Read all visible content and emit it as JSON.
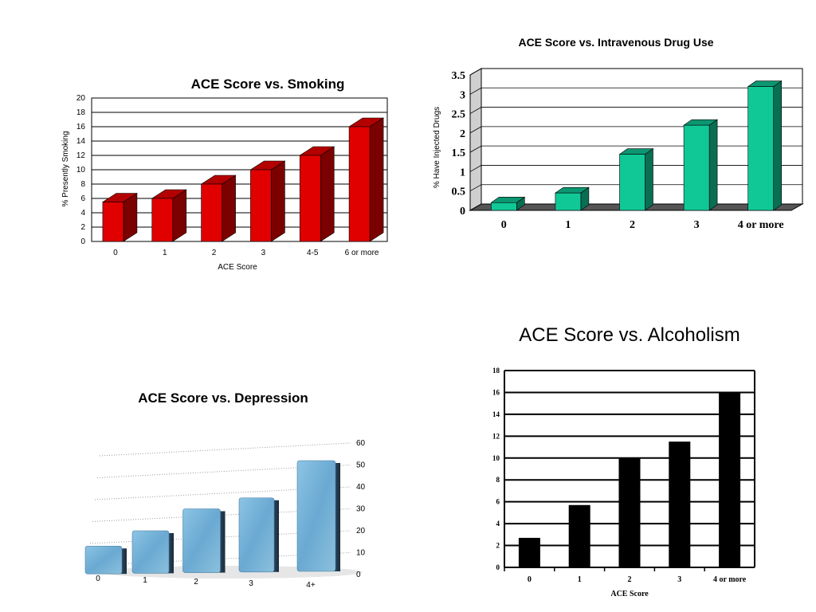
{
  "chart_data": [
    {
      "id": "smoking",
      "type": "bar",
      "title": "ACE Score vs. Smoking",
      "xlabel": "ACE Score",
      "ylabel": "% Presently Smoking",
      "categories": [
        "0",
        "1",
        "2",
        "3",
        "4-5",
        "6 or more"
      ],
      "values": [
        5.5,
        6,
        8,
        10,
        12,
        16
      ],
      "y_ticks": [
        "0",
        "2",
        "4",
        "6",
        "8",
        "10",
        "12",
        "14",
        "16",
        "18",
        "20"
      ],
      "ylim": [
        0,
        20
      ],
      "grid": true,
      "bar_color": "#e00000"
    },
    {
      "id": "drugs",
      "type": "bar",
      "title": "ACE Score vs. Intravenous Drug Use",
      "xlabel": "",
      "ylabel": "% Have Injected Drugs",
      "categories": [
        "0",
        "1",
        "2",
        "3",
        "4 or more"
      ],
      "values": [
        0.2,
        0.45,
        1.45,
        2.2,
        3.2
      ],
      "y_ticks": [
        "0",
        "0.5",
        "1",
        "1.5",
        "2",
        "2.5",
        "3",
        "3.5"
      ],
      "ylim": [
        0,
        3.5
      ],
      "grid": true,
      "bar_color": "#10c896"
    },
    {
      "id": "depression",
      "type": "bar",
      "title": "ACE Score vs. Depression",
      "xlabel": "",
      "ylabel": "",
      "categories": [
        "0",
        "1",
        "2",
        "3",
        "4+"
      ],
      "values": [
        13,
        20,
        30,
        35,
        52
      ],
      "y_ticks": [
        "0",
        "10",
        "20",
        "30",
        "40",
        "50",
        "60"
      ],
      "ylim": [
        0,
        60
      ],
      "grid": true,
      "bar_color": "#7fb4d8"
    },
    {
      "id": "alcoholism",
      "type": "bar",
      "title": "ACE Score vs. Alcoholism",
      "xlabel": "ACE Score",
      "ylabel": "",
      "categories": [
        "0",
        "1",
        "2",
        "3",
        "4 or more"
      ],
      "values": [
        2.7,
        5.7,
        10,
        11.5,
        16
      ],
      "y_ticks": [
        "0",
        "2",
        "4",
        "6",
        "8",
        "10",
        "12",
        "14",
        "16",
        "18"
      ],
      "ylim": [
        0,
        18
      ],
      "grid": true,
      "bar_color": "#000000"
    }
  ]
}
